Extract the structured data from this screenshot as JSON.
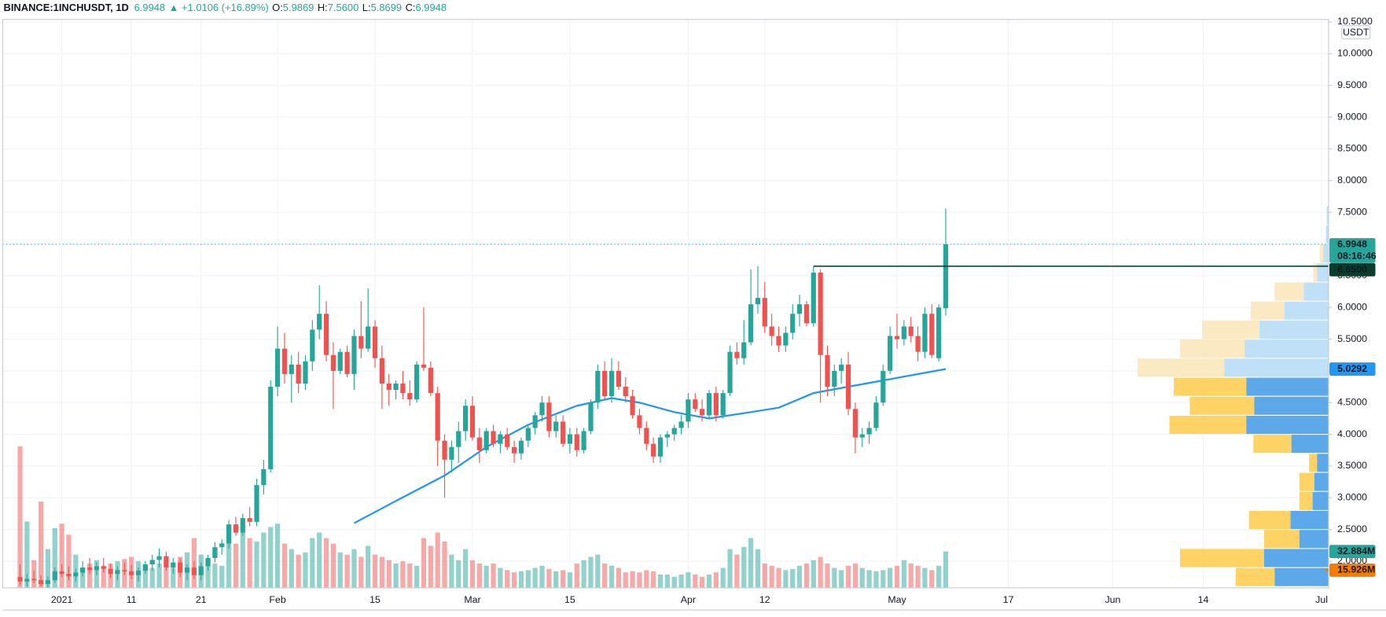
{
  "chart_data": {
    "type": "candlestick",
    "header": {
      "symbol": "BINANCE:1INCHUSDT, 1D",
      "last": "6.9948",
      "change": "▲ +1.0106 (+16.89%)",
      "ohlc_text": [
        [
          "O:",
          "5.9869"
        ],
        [
          "H:",
          "7.5600"
        ],
        [
          "L:",
          "5.8699"
        ],
        [
          "C:",
          "6.9948"
        ]
      ]
    },
    "currency": "USDT",
    "countdown": "08:16:46",
    "up_color": "#26a69a",
    "down_color": "#ef5350",
    "grid": true,
    "xlim": [
      -2.5,
      188
    ],
    "xticks": [
      {
        "value": 6,
        "label": "2021"
      },
      {
        "value": 16,
        "label": "11"
      },
      {
        "value": 26,
        "label": "21"
      },
      {
        "value": 37,
        "label": "Feb"
      },
      {
        "value": 51,
        "label": "15"
      },
      {
        "value": 65,
        "label": "Mar"
      },
      {
        "value": 79,
        "label": "15"
      },
      {
        "value": 96,
        "label": "Apr"
      },
      {
        "value": 107,
        "label": "12"
      },
      {
        "value": 126,
        "label": "May"
      },
      {
        "value": 142,
        "label": "17"
      },
      {
        "value": 157,
        "label": "Jun"
      },
      {
        "value": 170,
        "label": "14"
      },
      {
        "value": 187,
        "label": "Jul"
      }
    ],
    "ylim": [
      1.58,
      10.54
    ],
    "yticks": [
      {
        "value": 2,
        "label": "2.0000"
      },
      {
        "value": 2.5,
        "label": "2.5000"
      },
      {
        "value": 3,
        "label": "3.0000"
      },
      {
        "value": 3.5,
        "label": "3.5000"
      },
      {
        "value": 4,
        "label": "4.0000"
      },
      {
        "value": 4.5,
        "label": "4.5000"
      },
      {
        "value": 5,
        "label": "5.0000"
      },
      {
        "value": 5.5,
        "label": "5.5000"
      },
      {
        "value": 6,
        "label": "6.0000"
      },
      {
        "value": 6.5,
        "label": "6.5000"
      },
      {
        "value": 7,
        "label": "7.0000"
      },
      {
        "value": 7.5,
        "label": "7.5000"
      },
      {
        "value": 8,
        "label": "8.0000"
      },
      {
        "value": 8.5,
        "label": "8.5000"
      },
      {
        "value": 9,
        "label": "9.0000"
      },
      {
        "value": 9.5,
        "label": "9.5000"
      },
      {
        "value": 10,
        "label": "10.0000"
      },
      {
        "value": 10.5,
        "label": "10.5000"
      }
    ],
    "ohlc": [
      [
        1.75,
        1.95,
        1.62,
        1.68
      ],
      [
        1.68,
        1.8,
        1.6,
        1.72
      ],
      [
        1.72,
        1.85,
        1.65,
        1.7
      ],
      [
        1.7,
        1.78,
        1.6,
        1.64
      ],
      [
        1.64,
        1.76,
        1.58,
        1.7
      ],
      [
        1.7,
        1.9,
        1.66,
        1.84
      ],
      [
        1.84,
        1.95,
        1.75,
        1.8
      ],
      [
        1.8,
        1.92,
        1.7,
        1.76
      ],
      [
        1.76,
        1.88,
        1.68,
        1.82
      ],
      [
        1.82,
        2.0,
        1.76,
        1.9
      ],
      [
        1.9,
        2.05,
        1.8,
        1.86
      ],
      [
        1.86,
        1.98,
        1.78,
        1.92
      ],
      [
        1.92,
        2.05,
        1.82,
        1.88
      ],
      [
        1.88,
        1.96,
        1.74,
        1.8
      ],
      [
        1.8,
        1.92,
        1.7,
        1.86
      ],
      [
        1.86,
        1.98,
        1.78,
        1.84
      ],
      [
        1.84,
        1.94,
        1.72,
        1.78
      ],
      [
        1.78,
        1.9,
        1.68,
        1.85
      ],
      [
        1.85,
        2.0,
        1.8,
        1.95
      ],
      [
        1.95,
        2.1,
        1.85,
        2.02
      ],
      [
        2.02,
        2.2,
        1.9,
        2.08
      ],
      [
        2.08,
        2.15,
        1.85,
        1.9
      ],
      [
        1.9,
        2.05,
        1.8,
        1.98
      ],
      [
        1.98,
        2.05,
        1.75,
        1.82
      ],
      [
        1.82,
        1.95,
        1.7,
        1.9
      ],
      [
        1.9,
        2.0,
        1.72,
        1.78
      ],
      [
        1.78,
        1.98,
        1.7,
        1.92
      ],
      [
        1.92,
        2.1,
        1.85,
        2.05
      ],
      [
        2.05,
        2.3,
        1.98,
        2.22
      ],
      [
        2.22,
        2.35,
        2.1,
        2.28
      ],
      [
        2.28,
        2.65,
        2.2,
        2.58
      ],
      [
        2.58,
        2.7,
        2.4,
        2.45
      ],
      [
        2.45,
        2.75,
        2.4,
        2.68
      ],
      [
        2.68,
        2.85,
        2.55,
        2.62
      ],
      [
        2.62,
        3.3,
        2.55,
        3.2
      ],
      [
        3.2,
        3.6,
        3.05,
        3.45
      ],
      [
        3.45,
        4.85,
        3.4,
        4.75
      ],
      [
        4.75,
        5.7,
        4.6,
        5.35
      ],
      [
        5.35,
        5.6,
        4.8,
        4.95
      ],
      [
        4.95,
        5.25,
        4.5,
        5.1
      ],
      [
        5.1,
        5.3,
        4.65,
        4.8
      ],
      [
        4.8,
        5.25,
        4.7,
        5.15
      ],
      [
        5.15,
        5.8,
        5.0,
        5.65
      ],
      [
        5.65,
        6.35,
        5.5,
        5.9
      ],
      [
        5.9,
        6.1,
        5.15,
        5.25
      ],
      [
        5.25,
        5.45,
        4.4,
        5.0
      ],
      [
        5.0,
        5.35,
        4.95,
        5.3
      ],
      [
        5.3,
        5.4,
        4.9,
        4.95
      ],
      [
        4.95,
        5.65,
        4.7,
        5.55
      ],
      [
        5.55,
        6.1,
        5.2,
        5.35
      ],
      [
        5.35,
        6.3,
        5.3,
        5.7
      ],
      [
        5.7,
        5.8,
        5.05,
        5.2
      ],
      [
        5.2,
        5.4,
        4.4,
        4.8
      ],
      [
        4.8,
        4.95,
        4.45,
        4.7
      ],
      [
        4.7,
        4.85,
        4.55,
        4.8
      ],
      [
        4.8,
        5.0,
        4.55,
        4.65
      ],
      [
        4.65,
        4.85,
        4.45,
        4.55
      ],
      [
        4.55,
        5.15,
        4.5,
        5.1
      ],
      [
        5.1,
        6.0,
        5.0,
        5.05
      ],
      [
        5.05,
        5.15,
        4.6,
        4.65
      ],
      [
        4.65,
        4.75,
        3.5,
        3.9
      ],
      [
        3.9,
        4.0,
        3.0,
        3.6
      ],
      [
        3.6,
        3.9,
        3.4,
        3.8
      ],
      [
        3.8,
        4.2,
        3.55,
        4.05
      ],
      [
        4.05,
        4.55,
        3.9,
        4.45
      ],
      [
        4.45,
        4.6,
        3.9,
        3.95
      ],
      [
        3.95,
        4.1,
        3.55,
        3.75
      ],
      [
        3.75,
        4.1,
        3.7,
        4.05
      ],
      [
        4.05,
        4.15,
        3.8,
        3.85
      ],
      [
        3.85,
        4.05,
        3.7,
        4.0
      ],
      [
        4.0,
        4.1,
        3.75,
        3.8
      ],
      [
        3.8,
        3.9,
        3.55,
        3.7
      ],
      [
        3.7,
        3.95,
        3.6,
        3.9
      ],
      [
        3.9,
        4.15,
        3.8,
        4.1
      ],
      [
        4.1,
        4.35,
        4.0,
        4.3
      ],
      [
        4.3,
        4.6,
        4.2,
        4.5
      ],
      [
        4.5,
        4.6,
        3.95,
        4.05
      ],
      [
        4.05,
        4.3,
        3.95,
        4.2
      ],
      [
        4.2,
        4.3,
        3.8,
        3.85
      ],
      [
        3.85,
        4.1,
        3.7,
        4.0
      ],
      [
        4.0,
        4.1,
        3.65,
        3.75
      ],
      [
        3.75,
        4.1,
        3.7,
        4.05
      ],
      [
        4.05,
        4.55,
        4.0,
        4.5
      ],
      [
        4.5,
        5.1,
        4.4,
        5.0
      ],
      [
        5.0,
        5.15,
        4.55,
        4.6
      ],
      [
        4.6,
        5.2,
        4.5,
        5.0
      ],
      [
        5.0,
        5.15,
        4.7,
        4.75
      ],
      [
        4.75,
        4.9,
        4.5,
        4.6
      ],
      [
        4.6,
        4.7,
        4.25,
        4.3
      ],
      [
        4.3,
        4.4,
        4.0,
        4.1
      ],
      [
        4.1,
        4.2,
        3.75,
        3.85
      ],
      [
        3.85,
        3.95,
        3.55,
        3.65
      ],
      [
        3.65,
        4.0,
        3.55,
        3.95
      ],
      [
        3.95,
        4.05,
        3.8,
        4.0
      ],
      [
        4.0,
        4.15,
        3.9,
        4.1
      ],
      [
        4.1,
        4.3,
        4.0,
        4.2
      ],
      [
        4.2,
        4.65,
        4.1,
        4.55
      ],
      [
        4.55,
        4.65,
        4.35,
        4.4
      ],
      [
        4.4,
        4.55,
        4.2,
        4.3
      ],
      [
        4.3,
        4.7,
        4.25,
        4.65
      ],
      [
        4.65,
        4.75,
        4.2,
        4.3
      ],
      [
        4.3,
        4.7,
        4.25,
        4.65
      ],
      [
        4.65,
        5.4,
        4.6,
        5.3
      ],
      [
        5.3,
        5.45,
        5.1,
        5.2
      ],
      [
        5.2,
        5.8,
        5.1,
        5.45
      ],
      [
        5.45,
        6.6,
        5.4,
        6.05
      ],
      [
        6.05,
        6.65,
        5.9,
        6.15
      ],
      [
        6.15,
        6.4,
        5.6,
        5.7
      ],
      [
        5.7,
        5.9,
        5.4,
        5.55
      ],
      [
        5.55,
        5.7,
        5.3,
        5.4
      ],
      [
        5.4,
        5.7,
        5.3,
        5.6
      ],
      [
        5.6,
        6.05,
        5.5,
        5.9
      ],
      [
        5.9,
        6.2,
        5.7,
        6.05
      ],
      [
        6.05,
        6.1,
        5.7,
        5.75
      ],
      [
        5.75,
        6.65,
        5.7,
        6.55
      ],
      [
        6.55,
        6.6,
        4.5,
        5.25
      ],
      [
        5.25,
        5.4,
        4.6,
        4.75
      ],
      [
        4.75,
        5.1,
        4.6,
        5.0
      ],
      [
        5.0,
        5.2,
        4.8,
        5.1
      ],
      [
        5.1,
        5.3,
        4.3,
        4.4
      ],
      [
        4.4,
        4.5,
        3.7,
        3.95
      ],
      [
        3.95,
        4.1,
        3.8,
        4.0
      ],
      [
        4.0,
        4.2,
        3.85,
        4.1
      ],
      [
        4.1,
        4.6,
        4.05,
        4.5
      ],
      [
        4.5,
        5.1,
        4.45,
        5.0
      ],
      [
        5.0,
        5.7,
        4.95,
        5.55
      ],
      [
        5.55,
        5.9,
        5.35,
        5.5
      ],
      [
        5.5,
        5.8,
        5.4,
        5.7
      ],
      [
        5.7,
        5.85,
        5.45,
        5.55
      ],
      [
        5.55,
        5.7,
        5.15,
        5.3
      ],
      [
        5.3,
        6.0,
        5.2,
        5.9
      ],
      [
        5.9,
        6.05,
        5.2,
        5.25
      ],
      [
        5.2,
        6.05,
        5.15,
        6.0
      ],
      [
        5.9869,
        7.56,
        5.8699,
        6.9948
      ]
    ],
    "volume": [
      128,
      60,
      25,
      78,
      35,
      54,
      58,
      48,
      30,
      18,
      22,
      25,
      20,
      22,
      24,
      26,
      28,
      24,
      20,
      18,
      22,
      25,
      18,
      28,
      32,
      45,
      30,
      25,
      22,
      20,
      55,
      40,
      50,
      45,
      42,
      50,
      55,
      58,
      40,
      35,
      30,
      32,
      45,
      50,
      45,
      40,
      32,
      30,
      35,
      28,
      38,
      30,
      28,
      25,
      22,
      24,
      22,
      20,
      45,
      38,
      50,
      42,
      30,
      25,
      35,
      25,
      22,
      20,
      22,
      18,
      16,
      14,
      15,
      16,
      18,
      20,
      17,
      15,
      16,
      14,
      22,
      25,
      28,
      30,
      22,
      20,
      18,
      14,
      15,
      14,
      16,
      15,
      12,
      12,
      10,
      12,
      14,
      12,
      10,
      12,
      14,
      18,
      35,
      30,
      37,
      45,
      35,
      22,
      20,
      18,
      16,
      17,
      20,
      22,
      25,
      28,
      22,
      18,
      16,
      20,
      22,
      18,
      16,
      15,
      16,
      18,
      20,
      25,
      22,
      20,
      18,
      16,
      20,
      32.884
    ],
    "volume_lim": [
      0,
      514
    ],
    "volume_label": {
      "index": 133,
      "label": "32.884M"
    },
    "volume_ma": {
      "value": 15.926,
      "label": "15.926M",
      "color": "#f57c00"
    },
    "ma": {
      "color": "#2196f3",
      "x": [
        48,
        54,
        61,
        67,
        73,
        80,
        85,
        89,
        94,
        99,
        105,
        109,
        114,
        119,
        124,
        133
      ],
      "values": [
        2.6,
        2.95,
        3.35,
        3.8,
        4.15,
        4.45,
        4.57,
        4.5,
        4.35,
        4.25,
        4.35,
        4.42,
        4.65,
        4.75,
        4.85,
        5.0292
      ]
    },
    "hline": {
      "value": 6.65,
      "label": "6.6500",
      "start": 114,
      "color": "#0b3d2c"
    },
    "profile": {
      "bins": [
        1.6,
        1.9,
        2.2,
        2.5,
        2.8,
        3.1,
        3.4,
        3.7,
        4.0,
        4.3,
        4.6,
        4.9,
        5.2,
        5.5,
        5.8,
        6.1,
        6.4,
        6.7,
        7.0,
        7.3,
        7.6
      ],
      "up": [
        61,
        73,
        33,
        43,
        18,
        16,
        13,
        42,
        93,
        84,
        93,
        118,
        95,
        78,
        50,
        28,
        13,
        6,
        3,
        2
      ],
      "down": [
        44,
        95,
        40,
        47,
        15,
        17,
        9,
        43,
        87,
        73,
        82,
        98,
        73,
        65,
        38,
        33,
        4,
        4,
        0,
        0
      ],
      "value_area": [
        1.6,
        4.9
      ]
    }
  }
}
